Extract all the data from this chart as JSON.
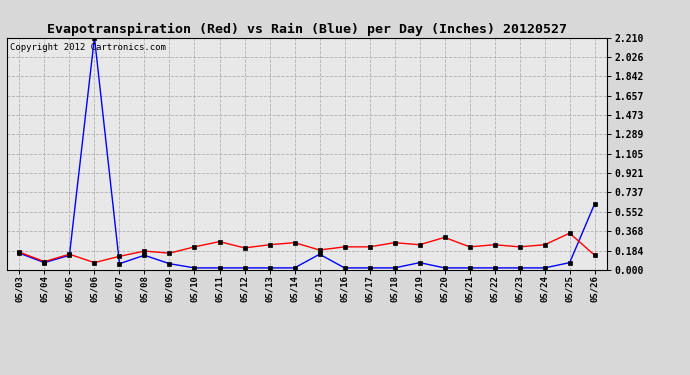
{
  "title": "Evapotranspiration (Red) vs Rain (Blue) per Day (Inches) 20120527",
  "copyright": "Copyright 2012 Cartronics.com",
  "dates": [
    "05/03",
    "05/04",
    "05/05",
    "05/06",
    "05/07",
    "05/08",
    "05/09",
    "05/10",
    "05/11",
    "05/12",
    "05/13",
    "05/14",
    "05/15",
    "05/16",
    "05/17",
    "05/18",
    "05/19",
    "05/20",
    "05/21",
    "05/22",
    "05/23",
    "05/24",
    "05/25",
    "05/26"
  ],
  "rain": [
    0.16,
    0.07,
    0.14,
    2.21,
    0.06,
    0.14,
    0.06,
    0.02,
    0.02,
    0.02,
    0.02,
    0.02,
    0.15,
    0.02,
    0.02,
    0.02,
    0.07,
    0.02,
    0.02,
    0.02,
    0.02,
    0.02,
    0.07,
    0.63
  ],
  "et": [
    0.17,
    0.08,
    0.15,
    0.07,
    0.13,
    0.18,
    0.16,
    0.22,
    0.27,
    0.21,
    0.24,
    0.26,
    0.19,
    0.22,
    0.22,
    0.26,
    0.24,
    0.31,
    0.22,
    0.24,
    0.22,
    0.24,
    0.35,
    0.14
  ],
  "yticks": [
    0.0,
    0.184,
    0.368,
    0.552,
    0.737,
    0.921,
    1.105,
    1.289,
    1.473,
    1.657,
    1.842,
    2.026,
    2.21
  ],
  "ymax": 2.21,
  "ymin": 0.0,
  "bg_color": "#d8d8d8",
  "plot_bg": "#e8e8e8",
  "grid_color": "#b0b0b0",
  "rain_color": "blue",
  "et_color": "red",
  "title_fontsize": 9.5,
  "copyright_fontsize": 6.5,
  "tick_fontsize": 6.5,
  "ytick_fontsize": 7.0
}
